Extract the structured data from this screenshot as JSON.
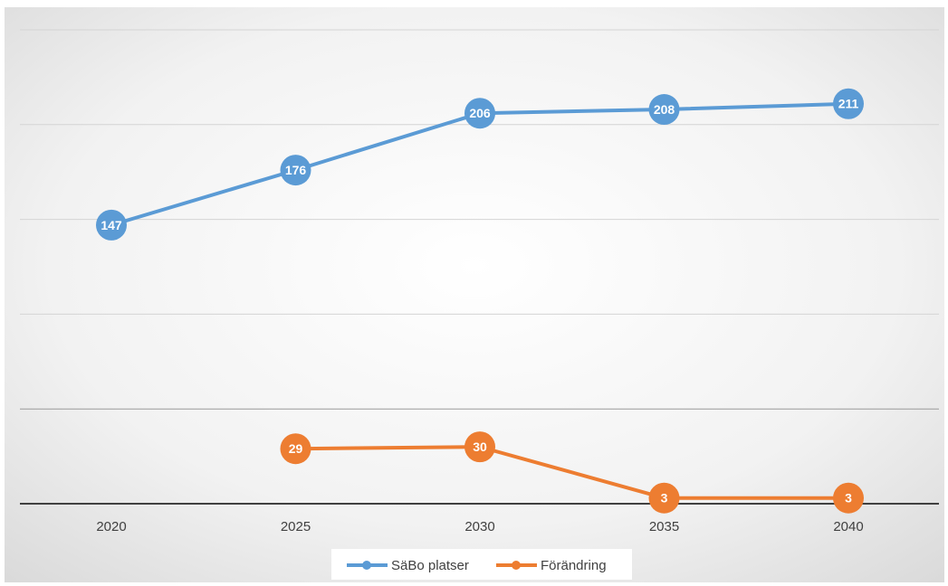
{
  "chart_data": {
    "type": "line",
    "title": "",
    "xlabel": "",
    "ylabel": "",
    "categories": [
      "2020",
      "2025",
      "2030",
      "2035",
      "2040"
    ],
    "ylim": [
      0,
      250
    ],
    "gridlines": [
      0,
      50,
      100,
      150,
      200,
      250
    ],
    "grid": true,
    "legend_position": "bottom",
    "series": [
      {
        "name": "SäBo platser",
        "color": "#5B9BD5",
        "values": [
          147,
          176,
          206,
          208,
          211
        ]
      },
      {
        "name": "Förändring",
        "color": "#ED7D31",
        "values": [
          null,
          29,
          30,
          3,
          3
        ]
      }
    ]
  }
}
